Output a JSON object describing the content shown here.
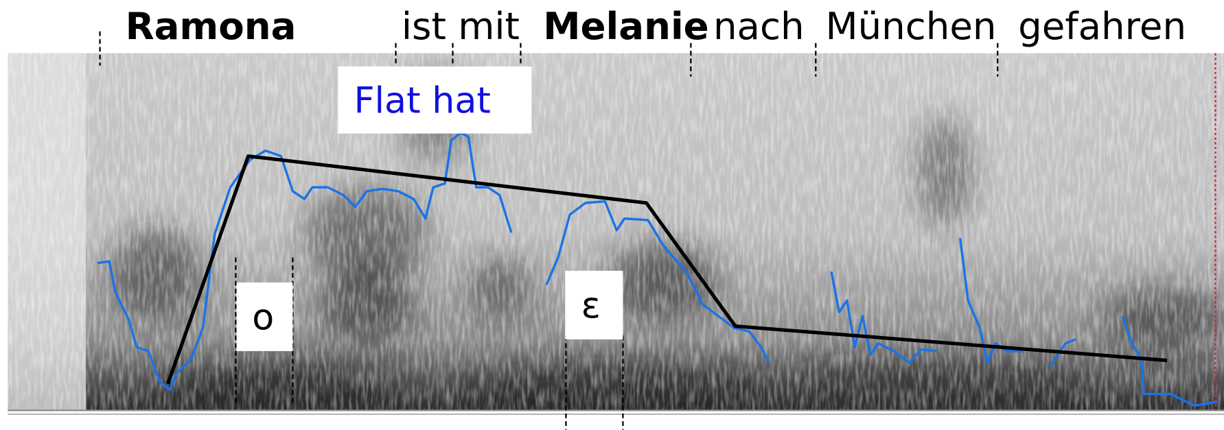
{
  "words": [
    "Ramona",
    "ist mit",
    "Melanie",
    "nach",
    "München",
    "gefahren"
  ],
  "annotation": "Flat hat",
  "segments": [
    "o",
    "ε"
  ]
}
